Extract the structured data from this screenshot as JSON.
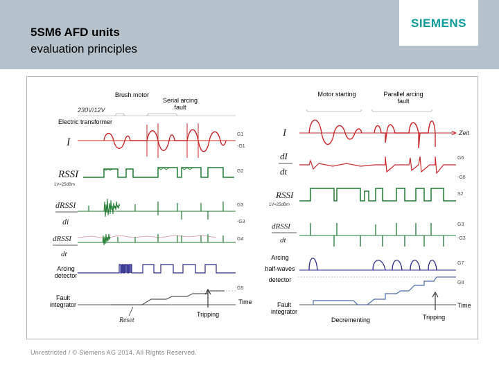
{
  "header": {
    "title_line1": "5SM6 AFD units",
    "title_line2": "evaluation principles",
    "logo": "SIEMENS"
  },
  "left_diagram": {
    "supply": "230V/12V",
    "brush_motor": "Brush motor",
    "serial_arcing_fault": "Serial arcing fault",
    "electric_transformer": "Electric transformer",
    "arcing_detector": "Arcing detector",
    "fault_integrator": "Fault integrator",
    "time": "Time",
    "tripping": "Tripping",
    "reset": "Reset",
    "signals": {
      "i": "I",
      "rssi": "RSSI",
      "rssi_unit": "1V=25dBm",
      "drssi_num": "dRSSI",
      "drssi_den": "di",
      "drssi2_num": "dRSSI",
      "drssi2_den": "dt"
    },
    "channels": [
      "G1",
      "-G1",
      "G2",
      "G3",
      "-G3",
      "G4",
      "G5"
    ]
  },
  "right_diagram": {
    "motor_starting": "Motor starting",
    "parallel_arcing_fault": "Parallel arcing fault",
    "zeit": "Zeit",
    "arcing_halfwaves_1": "Arcing",
    "arcing_halfwaves_2": "half-waves",
    "arcing_halfwaves_3": "detector",
    "fault_integrator": "Fault integrator",
    "decrementing": "Decrementing",
    "tripping": "Tripping",
    "time": "Time",
    "signals": {
      "i": "I",
      "di_num": "dI",
      "di_den": "dt",
      "rssi": "RSSI",
      "rssi_unit": "1V=25dBm",
      "drssi_num": "dRSSI",
      "drssi_den": "dt"
    },
    "channels": [
      "G6",
      "-G6",
      "S2",
      "G3",
      "-G3",
      "G7",
      "G8"
    ]
  },
  "footer": {
    "copyright": "Unrestricted / © Siemens AG 2014. All Rights Reserved."
  },
  "colors": {
    "header_bg": "#b5c2cc",
    "logo": "#0a9a9a",
    "current": "#c8282a",
    "rssi": "#1e7a2e",
    "detector": "#2a2a8a"
  }
}
